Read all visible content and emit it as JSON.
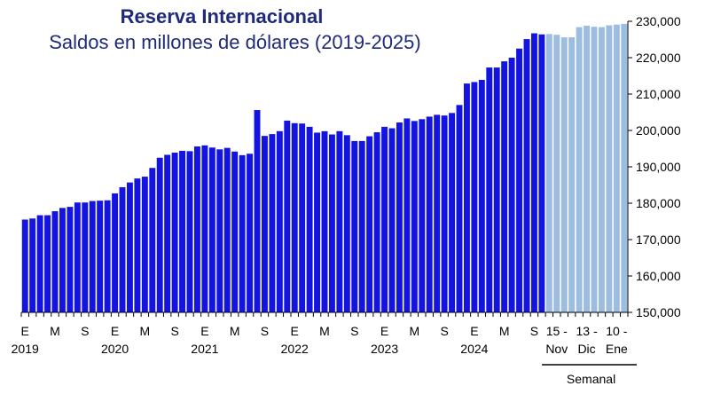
{
  "chart_data": {
    "type": "bar",
    "title": "Reserva Internacional",
    "subtitle": "Saldos en millones de dólares (2019-2025)",
    "ylim": [
      150000,
      230000
    ],
    "yticks": [
      "150,000",
      "160,000",
      "170,000",
      "180,000",
      "190,000",
      "200,000",
      "210,000",
      "220,000",
      "230,000"
    ],
    "ytick_values": [
      150000,
      160000,
      170000,
      180000,
      190000,
      200000,
      210000,
      220000,
      230000
    ],
    "grid": false,
    "colors": {
      "monthly": "#1414e0",
      "weekly": "#9dbde0"
    },
    "monthly": {
      "start": "2019-01",
      "values": [
        175500,
        175800,
        176700,
        176700,
        177800,
        178700,
        179000,
        180200,
        180200,
        180600,
        180700,
        180800,
        182700,
        184400,
        185700,
        186800,
        187300,
        189700,
        192500,
        193300,
        193900,
        194400,
        194300,
        195600,
        195900,
        195300,
        194800,
        195200,
        194200,
        193200,
        193600,
        205600,
        198500,
        199000,
        199800,
        202700,
        202000,
        201900,
        201000,
        199400,
        199800,
        198900,
        199800,
        198700,
        197100,
        197100,
        198400,
        199500,
        201000,
        200600,
        202200,
        203300,
        202600,
        203100,
        203800,
        204300,
        204100,
        204800,
        207000,
        212900,
        213300,
        213900,
        217300,
        217300,
        219000,
        220000,
        222500,
        225100,
        226700,
        226400
      ]
    },
    "weekly": {
      "values": [
        226500,
        226300,
        225600,
        225600,
        228400,
        228800,
        228500,
        228400,
        228900,
        229100,
        229300
      ]
    },
    "x_month_labels": [
      "E",
      "M",
      "S",
      "E",
      "M",
      "S",
      "E",
      "M",
      "S",
      "E",
      "M",
      "S",
      "E",
      "M",
      "S",
      "E",
      "M",
      "S"
    ],
    "x_year_labels": [
      "2019",
      "2020",
      "2021",
      "2022",
      "2023",
      "2024"
    ],
    "x_week_labels": [
      {
        "top": "15 -",
        "bottom": "Nov"
      },
      {
        "top": "13 -",
        "bottom": "Dic"
      },
      {
        "top": "10 -",
        "bottom": "Ene"
      }
    ],
    "weekly_group_label": "Semanal"
  }
}
